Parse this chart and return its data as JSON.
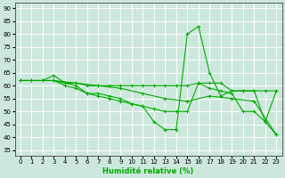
{
  "xlabel": "Humidité relative (%)",
  "background_color": "#cce8dc",
  "grid_color": "#ffffff",
  "line_color": "#00aa00",
  "xlim": [
    -0.5,
    23.5
  ],
  "ylim": [
    33,
    92
  ],
  "yticks": [
    35,
    40,
    45,
    50,
    55,
    60,
    65,
    70,
    75,
    80,
    85,
    90
  ],
  "xticks": [
    0,
    1,
    2,
    3,
    4,
    5,
    6,
    7,
    8,
    9,
    10,
    11,
    12,
    13,
    14,
    15,
    16,
    17,
    18,
    19,
    20,
    21,
    22,
    23
  ],
  "series1": [
    [
      0,
      62
    ],
    [
      1,
      62
    ],
    [
      2,
      62
    ],
    [
      3,
      62
    ],
    [
      4,
      61
    ],
    [
      5,
      61
    ],
    [
      6,
      60
    ],
    [
      7,
      60
    ],
    [
      8,
      60
    ],
    [
      9,
      60
    ],
    [
      10,
      60
    ],
    [
      11,
      60
    ],
    [
      12,
      60
    ],
    [
      13,
      60
    ],
    [
      14,
      60
    ],
    [
      15,
      60
    ],
    [
      16,
      61
    ],
    [
      17,
      61
    ],
    [
      18,
      61
    ],
    [
      19,
      58
    ],
    [
      20,
      58
    ],
    [
      21,
      58
    ],
    [
      22,
      58
    ],
    [
      23,
      58
    ]
  ],
  "series2": [
    [
      0,
      62
    ],
    [
      1,
      62
    ],
    [
      2,
      62
    ],
    [
      3,
      64
    ],
    [
      4,
      61
    ],
    [
      5,
      60
    ],
    [
      6,
      57
    ],
    [
      7,
      57
    ],
    [
      8,
      56
    ],
    [
      9,
      55
    ],
    [
      10,
      53
    ],
    [
      11,
      52
    ],
    [
      12,
      46
    ],
    [
      13,
      43
    ],
    [
      14,
      43
    ],
    [
      15,
      80
    ],
    [
      16,
      83
    ],
    [
      17,
      65
    ],
    [
      18,
      56
    ],
    [
      19,
      58
    ],
    [
      20,
      58
    ],
    [
      21,
      58
    ],
    [
      22,
      46
    ],
    [
      23,
      58
    ]
  ],
  "series3": [
    [
      0,
      62
    ],
    [
      1,
      62
    ],
    [
      2,
      62
    ],
    [
      3,
      62
    ],
    [
      4,
      60
    ],
    [
      5,
      59
    ],
    [
      6,
      57
    ],
    [
      7,
      56
    ],
    [
      8,
      55
    ],
    [
      9,
      54
    ],
    [
      10,
      53
    ],
    [
      11,
      52
    ],
    [
      12,
      51
    ],
    [
      13,
      50
    ],
    [
      14,
      50
    ],
    [
      15,
      50
    ],
    [
      16,
      61
    ],
    [
      17,
      59
    ],
    [
      18,
      58
    ],
    [
      19,
      57
    ],
    [
      20,
      50
    ],
    [
      21,
      50
    ],
    [
      22,
      46
    ],
    [
      23,
      41
    ]
  ],
  "series4": [
    [
      0,
      62
    ],
    [
      3,
      62
    ],
    [
      5,
      61
    ],
    [
      7,
      60
    ],
    [
      9,
      59
    ],
    [
      11,
      57
    ],
    [
      13,
      55
    ],
    [
      15,
      54
    ],
    [
      17,
      56
    ],
    [
      19,
      55
    ],
    [
      21,
      54
    ],
    [
      23,
      41
    ]
  ]
}
